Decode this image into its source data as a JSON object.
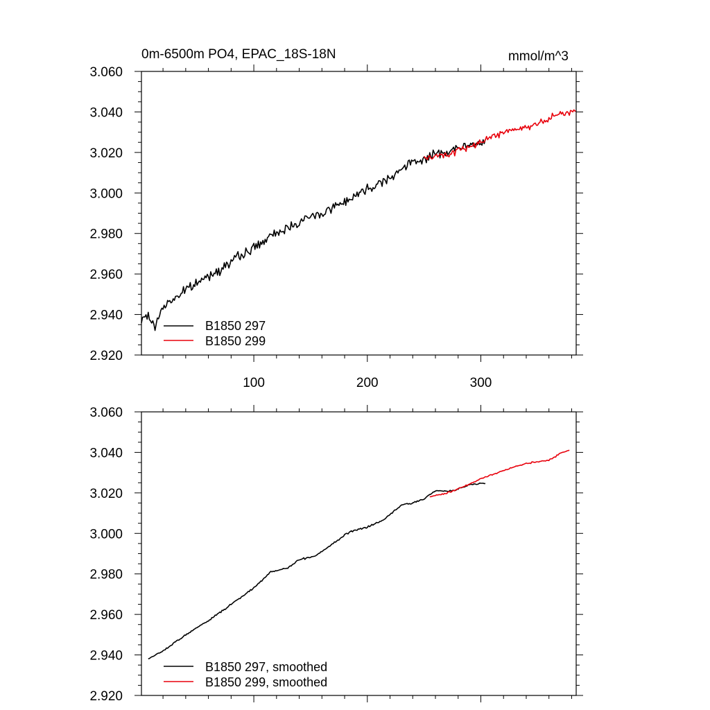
{
  "chart_data": [
    {
      "type": "line",
      "title": "0m-6500m PO4, EPAC_18S-18N",
      "units": "mmol/m^3",
      "xlabel": "",
      "ylabel": "",
      "xlim": [
        1,
        384
      ],
      "ylim": [
        2.92,
        3.06
      ],
      "ytick_values": [
        2.92,
        2.94,
        2.96,
        2.98,
        3.0,
        3.02,
        3.04,
        3.06
      ],
      "ytick_labels": [
        "2.920",
        "2.940",
        "2.960",
        "2.980",
        "3.000",
        "3.020",
        "3.040",
        "3.060"
      ],
      "xtick_values": [
        100,
        200,
        300
      ],
      "xtick_labels": [
        "100",
        "200",
        "300"
      ],
      "legend_position": "bottom-left",
      "series": [
        {
          "name": "B1850 297",
          "color": "#000000",
          "x_range": [
            1,
            304
          ],
          "anchors": [
            [
              1,
              2.936
            ],
            [
              5,
              2.94
            ],
            [
              10,
              2.937
            ],
            [
              12,
              2.933
            ],
            [
              20,
              2.944
            ],
            [
              40,
              2.952
            ],
            [
              60,
              2.959
            ],
            [
              80,
              2.966
            ],
            [
              100,
              2.973
            ],
            [
              120,
              2.98
            ],
            [
              140,
              2.986
            ],
            [
              160,
              2.99
            ],
            [
              180,
              2.996
            ],
            [
              200,
              3.002
            ],
            [
              220,
              3.008
            ],
            [
              240,
              3.015
            ],
            [
              260,
              3.019
            ],
            [
              280,
              3.022
            ],
            [
              304,
              3.025
            ]
          ],
          "noise": 0.0035,
          "seed": 7
        },
        {
          "name": "B1850 299",
          "color": "#e8000b",
          "x_range": [
            250,
            384
          ],
          "anchors": [
            [
              250,
              3.017
            ],
            [
              270,
              3.019
            ],
            [
              290,
              3.023
            ],
            [
              310,
              3.028
            ],
            [
              330,
              3.031
            ],
            [
              350,
              3.034
            ],
            [
              370,
              3.039
            ],
            [
              384,
              3.041
            ]
          ],
          "noise": 0.0025,
          "seed": 19
        }
      ]
    },
    {
      "type": "line",
      "title": "",
      "xlabel": "",
      "ylabel": "",
      "xlim": [
        1,
        384
      ],
      "ylim": [
        2.92,
        3.06
      ],
      "ytick_values": [
        2.92,
        2.94,
        2.96,
        2.98,
        3.0,
        3.02,
        3.04,
        3.06
      ],
      "ytick_labels": [
        "2.920",
        "2.940",
        "2.960",
        "2.980",
        "3.000",
        "3.020",
        "3.040",
        "3.060"
      ],
      "xtick_values": [
        100,
        200,
        300
      ],
      "xtick_labels": [],
      "legend_position": "bottom-left",
      "series": [
        {
          "name": "B1850 297, smoothed",
          "color": "#000000",
          "x_range": [
            7,
            304
          ],
          "anchors": [
            [
              7,
              2.938
            ],
            [
              20,
              2.942
            ],
            [
              40,
              2.95
            ],
            [
              60,
              2.957
            ],
            [
              80,
              2.965
            ],
            [
              100,
              2.973
            ],
            [
              115,
              2.981
            ],
            [
              130,
              2.983
            ],
            [
              140,
              2.987
            ],
            [
              155,
              2.989
            ],
            [
              170,
              2.995
            ],
            [
              185,
              3.001
            ],
            [
              200,
              3.003
            ],
            [
              215,
              3.007
            ],
            [
              230,
              3.014
            ],
            [
              240,
              3.015
            ],
            [
              250,
              3.017
            ],
            [
              260,
              3.021
            ],
            [
              275,
              3.021
            ],
            [
              290,
              3.024
            ],
            [
              304,
              3.025
            ]
          ],
          "noise": 0.0006,
          "seed": 3
        },
        {
          "name": "B1850 299, smoothed",
          "color": "#e8000b",
          "x_range": [
            255,
            378
          ],
          "anchors": [
            [
              255,
              3.018
            ],
            [
              270,
              3.02
            ],
            [
              285,
              3.023
            ],
            [
              300,
              3.027
            ],
            [
              315,
              3.03
            ],
            [
              330,
              3.033
            ],
            [
              345,
              3.035
            ],
            [
              360,
              3.036
            ],
            [
              372,
              3.04
            ],
            [
              378,
              3.041
            ]
          ],
          "noise": 0.0005,
          "seed": 11
        }
      ]
    }
  ]
}
